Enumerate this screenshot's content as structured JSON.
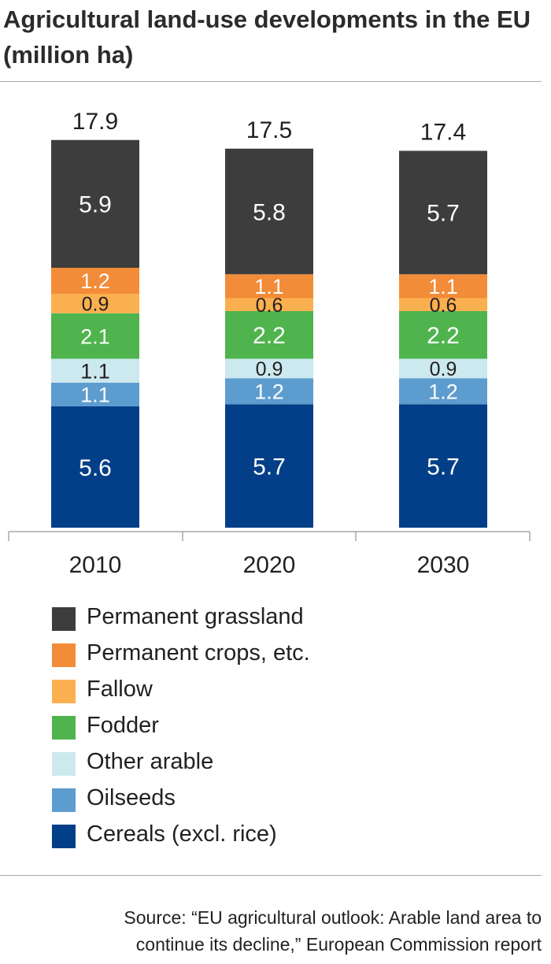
{
  "title": "Agricultural land-use developments in the EU (million ha)",
  "chart_data": {
    "type": "bar",
    "stacked": true,
    "categories": [
      "2010",
      "2020",
      "2030"
    ],
    "totals": [
      "17.9",
      "17.5",
      "17.4"
    ],
    "series": [
      {
        "name": "Cereals (excl. rice)",
        "color": "#023f88",
        "values": [
          5.6,
          5.7,
          5.7
        ],
        "labels": [
          "5.6",
          "5.7",
          "5.7"
        ]
      },
      {
        "name": "Oilseeds",
        "color": "#5d9ccf",
        "values": [
          1.1,
          1.2,
          1.2
        ],
        "labels": [
          "1.1",
          "1.2",
          "1.2"
        ]
      },
      {
        "name": "Other arable",
        "color": "#cce9ef",
        "values": [
          1.1,
          0.9,
          0.9
        ],
        "labels": [
          "1.1",
          "0.9",
          "0.9"
        ]
      },
      {
        "name": "Fodder",
        "color": "#4fb44d",
        "values": [
          2.1,
          2.2,
          2.2
        ],
        "labels": [
          "2.1",
          "2.2",
          "2.2"
        ]
      },
      {
        "name": "Fallow",
        "color": "#fbb04f",
        "values": [
          0.9,
          0.6,
          0.6
        ],
        "labels": [
          "0.9",
          "0.6",
          "0.6"
        ]
      },
      {
        "name": "Permanent crops, etc.",
        "color": "#f28c38",
        "values": [
          1.2,
          1.1,
          1.1
        ],
        "labels": [
          "1.2",
          "1.1",
          "1.1"
        ]
      },
      {
        "name": "Permanent grassland",
        "color": "#3d3d3d",
        "values": [
          5.9,
          5.8,
          5.7
        ],
        "labels": [
          "5.9",
          "5.8",
          "5.7"
        ]
      }
    ],
    "ylim": [
      0,
      19
    ],
    "grid": false,
    "legend": "bottom"
  },
  "source": {
    "line1": "Source: “EU agricultural outlook: Arable land area to",
    "line2": "continue its decline,” European Commission report"
  }
}
